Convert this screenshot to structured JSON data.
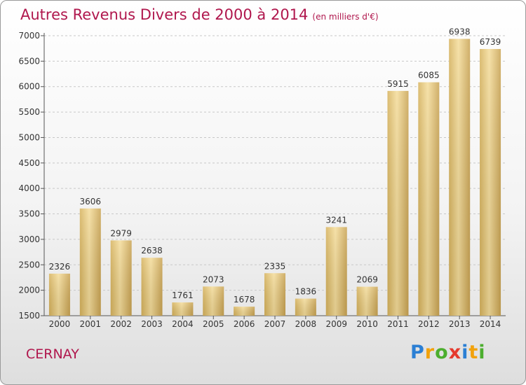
{
  "title": "Autres Revenus Divers de 2000 à 2014",
  "subtitle": "(en milliers d'€)",
  "city": "CERNAY",
  "logo": {
    "letters": [
      {
        "ch": "P",
        "color": "#2b7fd4"
      },
      {
        "ch": "r",
        "color": "#f2a20c"
      },
      {
        "ch": "o",
        "color": "#4cae2e"
      },
      {
        "ch": "x",
        "color": "#e5392d"
      },
      {
        "ch": "i",
        "color": "#2b7fd4"
      },
      {
        "ch": "t",
        "color": "#f2a20c"
      },
      {
        "ch": "i",
        "color": "#4cae2e"
      }
    ]
  },
  "chart_data": {
    "type": "bar",
    "title": "Autres Revenus Divers de 2000 à 2014",
    "subtitle": "(en milliers d'€)",
    "categories": [
      "2000",
      "2001",
      "2002",
      "2003",
      "2004",
      "2005",
      "2006",
      "2007",
      "2008",
      "2009",
      "2010",
      "2011",
      "2012",
      "2013",
      "2014"
    ],
    "values": [
      2326,
      3606,
      2979,
      2638,
      1761,
      2073,
      1678,
      2335,
      1836,
      3241,
      2069,
      5915,
      6085,
      6938,
      6739
    ],
    "ylim": [
      1500,
      7000
    ],
    "yticks": [
      1500,
      2000,
      2500,
      3000,
      3500,
      4000,
      4500,
      5000,
      5500,
      6000,
      6500,
      7000
    ],
    "grid": true,
    "bar_color": "#e8cc82",
    "data_labels": true
  }
}
